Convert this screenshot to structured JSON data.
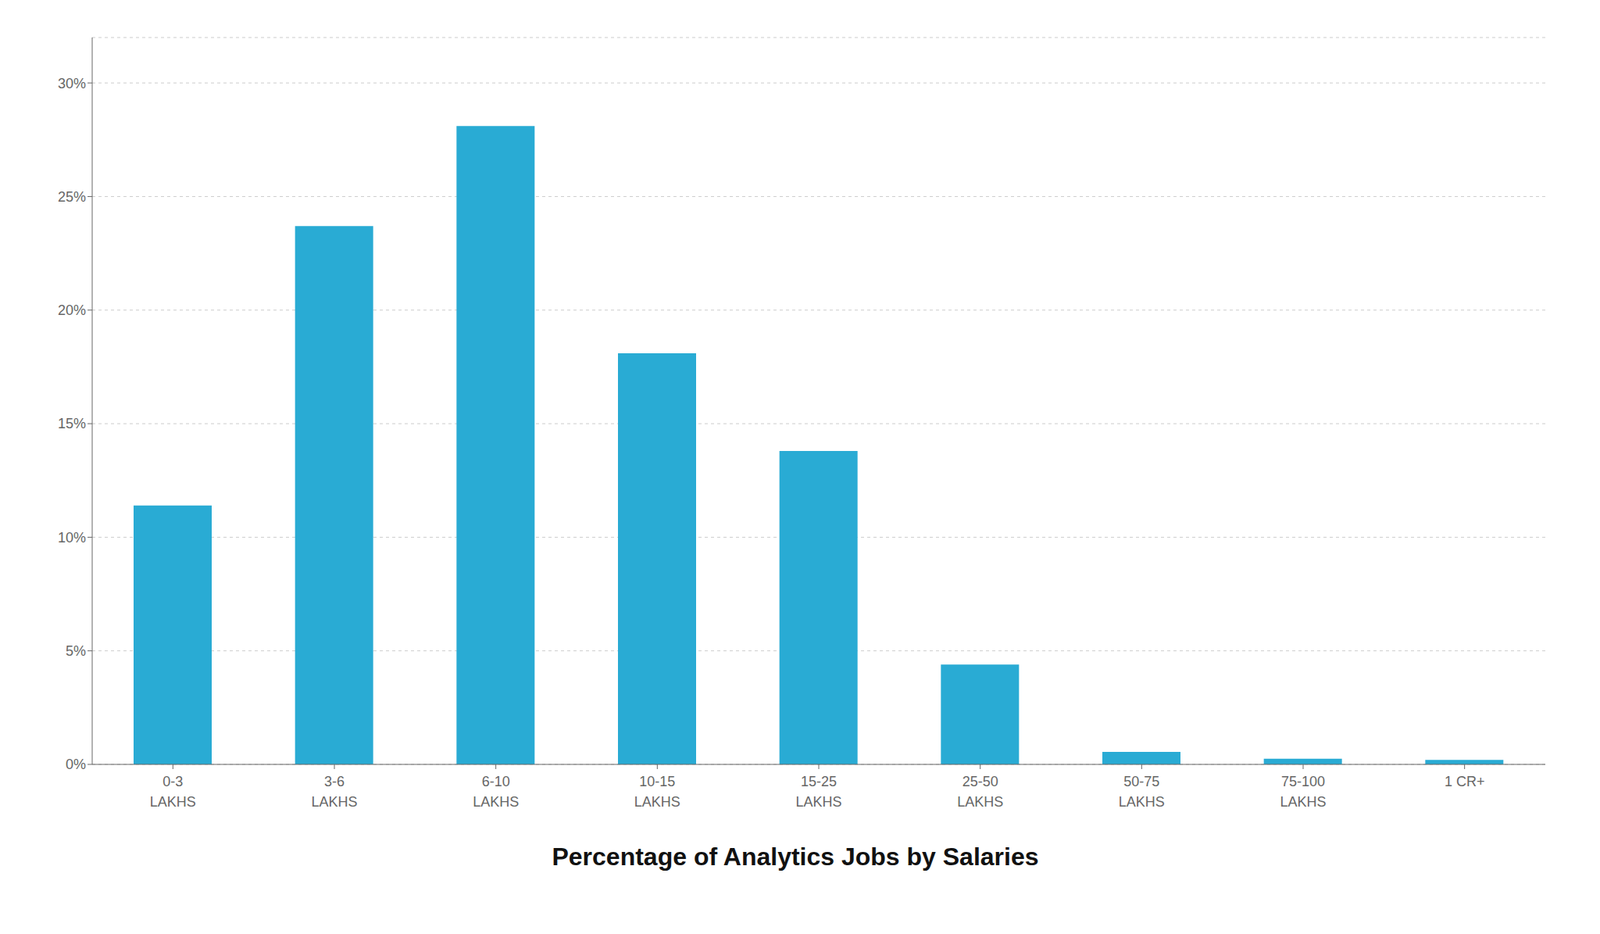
{
  "chart_data": {
    "type": "bar",
    "title": "Percentage of Analytics Jobs by Salaries",
    "categories": [
      "0-3\nLAKHS",
      "3-6\nLAKHS",
      "6-10\nLAKHS",
      "10-15\nLAKHS",
      "15-25\nLAKHS",
      "25-50\nLAKHS",
      "50-75\nLAKHS",
      "75-100\nLAKHS",
      "1 CR+"
    ],
    "values": [
      11.4,
      23.7,
      28.1,
      18.1,
      13.8,
      4.4,
      0.55,
      0.25,
      0.2
    ],
    "color": "#29ABD4",
    "ylim": [
      0,
      32
    ],
    "yticks": [
      {
        "value": 0,
        "label": "0%"
      },
      {
        "value": 5,
        "label": "5%"
      },
      {
        "value": 10,
        "label": "10%"
      },
      {
        "value": 15,
        "label": "15%"
      },
      {
        "value": 20,
        "label": "20%"
      },
      {
        "value": 25,
        "label": "25%"
      },
      {
        "value": 30,
        "label": "30%"
      }
    ],
    "grid": true
  }
}
